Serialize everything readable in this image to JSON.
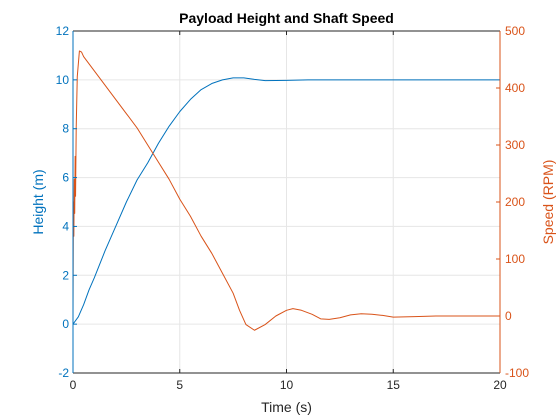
{
  "chart_data": {
    "type": "line",
    "title": "Payload Height and Shaft Speed",
    "xlabel": "Time (s)",
    "ylabel_left": "Height (m)",
    "ylabel_right": "Speed (RPM)",
    "xlim": [
      0,
      20
    ],
    "ylim_left": [
      -2,
      12
    ],
    "ylim_right": [
      -100,
      500
    ],
    "x_ticks": [
      "0",
      "5",
      "10",
      "15",
      "20"
    ],
    "y_ticks_left": [
      "-2",
      "0",
      "2",
      "4",
      "6",
      "8",
      "10",
      "12"
    ],
    "y_ticks_right": [
      "-100",
      "0",
      "100",
      "200",
      "300",
      "400",
      "500"
    ],
    "grid": true,
    "colors": {
      "left": "#0072BD",
      "right": "#D95319"
    },
    "series": [
      {
        "axis": "left",
        "points": [
          [
            0,
            0
          ],
          [
            0.25,
            0.3
          ],
          [
            0.5,
            0.8
          ],
          [
            0.75,
            1.4
          ],
          [
            1,
            1.9
          ],
          [
            1.5,
            3.0
          ],
          [
            2,
            4.0
          ],
          [
            2.5,
            5.0
          ],
          [
            3,
            5.9
          ],
          [
            3.5,
            6.6
          ],
          [
            4,
            7.4
          ],
          [
            4.5,
            8.1
          ],
          [
            5,
            8.7
          ],
          [
            5.5,
            9.2
          ],
          [
            6,
            9.6
          ],
          [
            6.5,
            9.85
          ],
          [
            7,
            10.0
          ],
          [
            7.5,
            10.08
          ],
          [
            8,
            10.08
          ],
          [
            8.5,
            10.02
          ],
          [
            9,
            9.97
          ],
          [
            10,
            9.98
          ],
          [
            11,
            10.0
          ],
          [
            12,
            10.0
          ],
          [
            13,
            10.0
          ],
          [
            14,
            10.0
          ],
          [
            16,
            10.0
          ],
          [
            18,
            10.0
          ],
          [
            20,
            10.0
          ]
        ]
      },
      {
        "axis": "right",
        "points": [
          [
            0,
            0
          ],
          [
            0.02,
            200
          ],
          [
            0.04,
            140
          ],
          [
            0.06,
            240
          ],
          [
            0.08,
            180
          ],
          [
            0.1,
            280
          ],
          [
            0.12,
            210
          ],
          [
            0.15,
            330
          ],
          [
            0.2,
            420
          ],
          [
            0.3,
            465
          ],
          [
            0.4,
            463
          ],
          [
            0.5,
            455
          ],
          [
            1,
            430
          ],
          [
            1.5,
            405
          ],
          [
            2,
            380
          ],
          [
            2.5,
            355
          ],
          [
            3,
            330
          ],
          [
            3.5,
            300
          ],
          [
            4,
            270
          ],
          [
            4.5,
            240
          ],
          [
            5,
            205
          ],
          [
            5.5,
            175
          ],
          [
            6,
            140
          ],
          [
            6.5,
            110
          ],
          [
            7,
            75
          ],
          [
            7.5,
            40
          ],
          [
            7.8,
            10
          ],
          [
            8.1,
            -15
          ],
          [
            8.5,
            -25
          ],
          [
            9,
            -15
          ],
          [
            9.5,
            0
          ],
          [
            10,
            10
          ],
          [
            10.3,
            13
          ],
          [
            10.7,
            10
          ],
          [
            11.2,
            3
          ],
          [
            11.6,
            -5
          ],
          [
            12,
            -6
          ],
          [
            12.5,
            -3
          ],
          [
            13,
            2
          ],
          [
            13.5,
            4
          ],
          [
            14,
            3
          ],
          [
            14.5,
            1
          ],
          [
            15,
            -2
          ],
          [
            16,
            -1
          ],
          [
            17,
            0
          ],
          [
            18,
            0
          ],
          [
            19,
            0
          ],
          [
            20,
            0
          ]
        ]
      }
    ]
  }
}
